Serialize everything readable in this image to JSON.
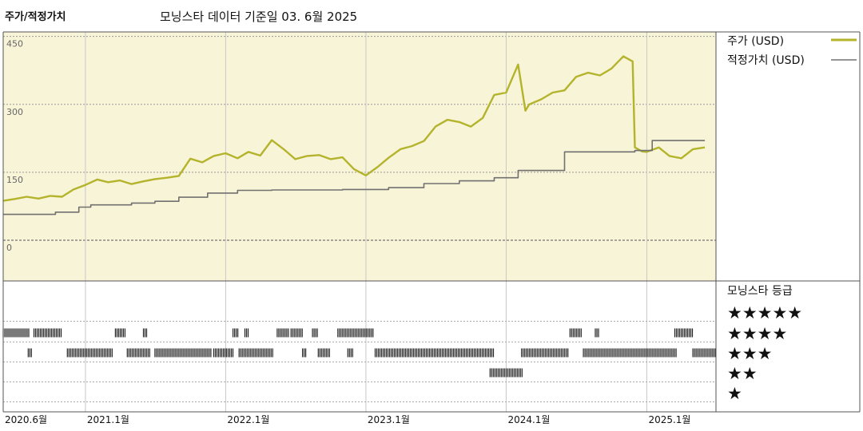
{
  "header": {
    "title": "주가/적정가치",
    "subtitle": "모닝스타 데이터 기준일 03. 6월 2025"
  },
  "colors": {
    "plot_background": "#f8f4d7",
    "price_line": "#b4b32c",
    "fair_value_line": "#707070",
    "rating_bar": "#222222",
    "grid": "#9a9a9a",
    "border": "#555555"
  },
  "chart_data": {
    "type": "line",
    "xlim": [
      "2020-06-01",
      "2025-06-30"
    ],
    "ylim": [
      -90,
      460
    ],
    "yticks": [
      {
        "label": "450",
        "value": 450
      },
      {
        "label": "300",
        "value": 300
      },
      {
        "label": "150",
        "value": 150
      },
      {
        "label": "0",
        "value": 0
      }
    ],
    "xticks": [
      {
        "label": "2020.6월",
        "date": "2020-06-01"
      },
      {
        "label": "2021.1월",
        "date": "2021-01-01"
      },
      {
        "label": "2022.1월",
        "date": "2022-01-01"
      },
      {
        "label": "2023.1월",
        "date": "2023-01-01"
      },
      {
        "label": "2024.1월",
        "date": "2024-01-01"
      },
      {
        "label": "2025.1월",
        "date": "2025-01-01"
      }
    ],
    "grid": true,
    "legend_position": "right",
    "series": [
      {
        "name": "주가 (USD)",
        "style": "line",
        "points": [
          [
            "2020-06-01",
            87
          ],
          [
            "2020-07-01",
            91
          ],
          [
            "2020-08-01",
            96
          ],
          [
            "2020-09-01",
            92
          ],
          [
            "2020-10-01",
            98
          ],
          [
            "2020-11-01",
            96
          ],
          [
            "2020-12-01",
            112
          ],
          [
            "2021-01-01",
            122
          ],
          [
            "2021-02-01",
            134
          ],
          [
            "2021-03-01",
            128
          ],
          [
            "2021-04-01",
            132
          ],
          [
            "2021-05-01",
            124
          ],
          [
            "2021-06-01",
            130
          ],
          [
            "2021-07-01",
            135
          ],
          [
            "2021-08-01",
            138
          ],
          [
            "2021-09-01",
            142
          ],
          [
            "2021-10-01",
            180
          ],
          [
            "2021-11-01",
            172
          ],
          [
            "2021-12-01",
            186
          ],
          [
            "2022-01-01",
            192
          ],
          [
            "2022-02-01",
            181
          ],
          [
            "2022-03-01",
            195
          ],
          [
            "2022-04-01",
            187
          ],
          [
            "2022-05-01",
            221
          ],
          [
            "2022-06-01",
            201
          ],
          [
            "2022-07-01",
            179
          ],
          [
            "2022-08-01",
            186
          ],
          [
            "2022-09-01",
            188
          ],
          [
            "2022-10-01",
            179
          ],
          [
            "2022-11-01",
            183
          ],
          [
            "2022-12-01",
            157
          ],
          [
            "2023-01-01",
            143
          ],
          [
            "2023-02-01",
            162
          ],
          [
            "2023-03-01",
            182
          ],
          [
            "2023-04-01",
            201
          ],
          [
            "2023-05-01",
            208
          ],
          [
            "2023-06-01",
            219
          ],
          [
            "2023-07-01",
            251
          ],
          [
            "2023-08-01",
            266
          ],
          [
            "2023-09-01",
            261
          ],
          [
            "2023-10-01",
            251
          ],
          [
            "2023-11-01",
            270
          ],
          [
            "2023-12-01",
            321
          ],
          [
            "2024-01-01",
            326
          ],
          [
            "2024-02-01",
            388
          ],
          [
            "2024-02-20",
            286
          ],
          [
            "2024-03-01",
            300
          ],
          [
            "2024-04-01",
            311
          ],
          [
            "2024-05-01",
            326
          ],
          [
            "2024-06-01",
            331
          ],
          [
            "2024-07-01",
            361
          ],
          [
            "2024-08-01",
            370
          ],
          [
            "2024-09-01",
            364
          ],
          [
            "2024-10-01",
            379
          ],
          [
            "2024-11-01",
            406
          ],
          [
            "2024-11-25",
            395
          ],
          [
            "2024-12-01",
            205
          ],
          [
            "2024-12-20",
            196
          ],
          [
            "2025-01-01",
            195
          ],
          [
            "2025-02-01",
            205
          ],
          [
            "2025-03-01",
            186
          ],
          [
            "2025-04-01",
            181
          ],
          [
            "2025-05-01",
            201
          ],
          [
            "2025-06-01",
            205
          ]
        ]
      },
      {
        "name": "적정가치 (USD)",
        "style": "step",
        "points": [
          [
            "2020-06-01",
            57
          ],
          [
            "2020-10-15",
            62
          ],
          [
            "2020-12-15",
            73
          ],
          [
            "2021-01-15",
            78
          ],
          [
            "2021-05-01",
            82
          ],
          [
            "2021-07-01",
            86
          ],
          [
            "2021-09-01",
            95
          ],
          [
            "2021-11-15",
            104
          ],
          [
            "2022-02-01",
            110
          ],
          [
            "2022-05-01",
            111
          ],
          [
            "2022-11-01",
            112
          ],
          [
            "2023-03-01",
            116
          ],
          [
            "2023-06-01",
            125
          ],
          [
            "2023-09-01",
            131
          ],
          [
            "2023-12-01",
            138
          ],
          [
            "2024-02-01",
            154
          ],
          [
            "2024-06-01",
            195
          ],
          [
            "2024-12-01",
            198
          ],
          [
            "2025-01-15",
            220
          ],
          [
            "2025-06-01",
            220
          ]
        ]
      }
    ],
    "rating_panel": {
      "title": "모닝스타 등급",
      "levels": [
        "★★★★★",
        "★★★★",
        "★★★",
        "★★",
        "★"
      ],
      "periods": [
        {
          "stars": 4,
          "from": "2020-06-01",
          "to": "2020-08-10"
        },
        {
          "stars": 4,
          "from": "2020-08-20",
          "to": "2020-10-31"
        },
        {
          "stars": 3,
          "from": "2020-08-05",
          "to": "2020-08-15"
        },
        {
          "stars": 3,
          "from": "2020-11-15",
          "to": "2021-03-15"
        },
        {
          "stars": 4,
          "from": "2021-03-20",
          "to": "2021-04-15"
        },
        {
          "stars": 4,
          "from": "2021-06-01",
          "to": "2021-06-12"
        },
        {
          "stars": 3,
          "from": "2021-04-20",
          "to": "2021-06-20"
        },
        {
          "stars": 3,
          "from": "2021-07-01",
          "to": "2021-11-25"
        },
        {
          "stars": 3,
          "from": "2021-12-01",
          "to": "2022-01-20"
        },
        {
          "stars": 4,
          "from": "2022-01-20",
          "to": "2022-02-05"
        },
        {
          "stars": 4,
          "from": "2022-02-20",
          "to": "2022-03-01"
        },
        {
          "stars": 3,
          "from": "2022-02-05",
          "to": "2022-05-05"
        },
        {
          "stars": 4,
          "from": "2022-05-15",
          "to": "2022-06-15"
        },
        {
          "stars": 4,
          "from": "2022-06-20",
          "to": "2022-07-20"
        },
        {
          "stars": 4,
          "from": "2022-08-15",
          "to": "2022-08-30"
        },
        {
          "stars": 3,
          "from": "2022-07-20",
          "to": "2022-08-01"
        },
        {
          "stars": 3,
          "from": "2022-08-30",
          "to": "2022-09-30"
        },
        {
          "stars": 4,
          "from": "2022-10-20",
          "to": "2023-01-20"
        },
        {
          "stars": 3,
          "from": "2022-11-15",
          "to": "2022-12-01"
        },
        {
          "stars": 3,
          "from": "2023-01-25",
          "to": "2023-11-30"
        },
        {
          "stars": 2,
          "from": "2023-11-20",
          "to": "2024-02-15"
        },
        {
          "stars": 3,
          "from": "2024-02-10",
          "to": "2024-06-10"
        },
        {
          "stars": 4,
          "from": "2024-06-15",
          "to": "2024-07-15"
        },
        {
          "stars": 4,
          "from": "2024-08-20",
          "to": "2024-08-31"
        },
        {
          "stars": 3,
          "from": "2024-07-20",
          "to": "2025-03-20"
        },
        {
          "stars": 4,
          "from": "2025-03-15",
          "to": "2025-05-01"
        },
        {
          "stars": 3,
          "from": "2025-05-01",
          "to": "2025-06-30"
        }
      ]
    }
  }
}
